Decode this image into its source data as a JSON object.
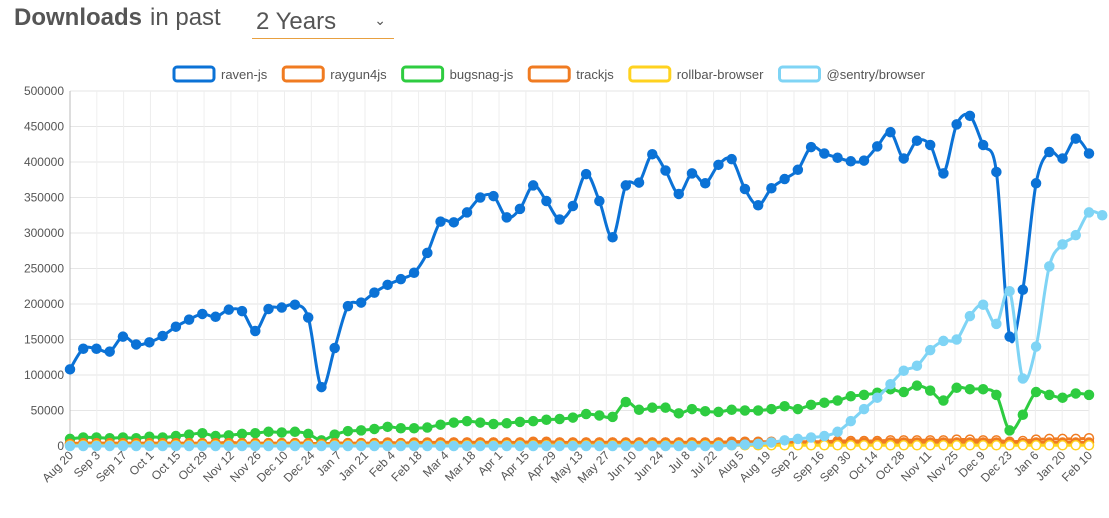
{
  "header": {
    "title": "Downloads",
    "subtitle": "in past"
  },
  "period": {
    "selected": "2 Years",
    "chevron_icon": "chevron-down-icon"
  },
  "chart_data": {
    "type": "line",
    "ylim": [
      0,
      500000
    ],
    "yticks": [
      0,
      50000,
      100000,
      150000,
      200000,
      250000,
      300000,
      350000,
      400000,
      450000,
      500000
    ],
    "xtick_labels": [
      "Aug 20",
      "Sep 3",
      "Sep 17",
      "Oct 1",
      "Oct 15",
      "Oct 29",
      "Nov 12",
      "Nov 26",
      "Dec 10",
      "Dec 24",
      "Jan 7",
      "Jan 21",
      "Feb 4",
      "Feb 18",
      "Mar 4",
      "Mar 18",
      "Apr 1",
      "Apr 15",
      "Apr 29",
      "May 13",
      "May 27",
      "Jun 10",
      "Jun 24",
      "Jul 8",
      "Jul 22",
      "Aug 5",
      "Aug 19",
      "Sep 2",
      "Sep 16",
      "Sep 30",
      "Oct 14",
      "Oct 28",
      "Nov 11",
      "Nov 25",
      "Dec 9",
      "Dec 23",
      "Jan 6",
      "Jan 20",
      "Feb 10"
    ],
    "grid": true,
    "legend_position": "top",
    "series": [
      {
        "name": "raven-js",
        "color": "#0b72d6",
        "fill": "#0b72d6",
        "values": [
          108000,
          137000,
          137000,
          133000,
          154000,
          143000,
          146000,
          155000,
          168000,
          178000,
          186000,
          182000,
          192000,
          190000,
          162000,
          193000,
          195000,
          199000,
          181000,
          83000,
          138000,
          197000,
          202000,
          216000,
          227000,
          235000,
          244000,
          272000,
          316000,
          315000,
          329000,
          350000,
          352000,
          322000,
          334000,
          367000,
          345000,
          319000,
          338000,
          383000,
          345000,
          294000,
          367000,
          371000,
          411000,
          388000,
          355000,
          384000,
          370000,
          396000,
          404000,
          362000,
          339000,
          363000,
          376000,
          389000,
          421000,
          412000,
          406000,
          401000,
          402000,
          422000,
          442000,
          405000,
          430000,
          424000,
          384000,
          453000,
          465000,
          424000,
          386000,
          154000,
          220000,
          370000,
          414000,
          405000,
          433000,
          412000
        ]
      },
      {
        "name": "raygun4js",
        "color": "#f07b21",
        "fill": "#ffffff",
        "values": [
          4000,
          4000,
          4000,
          4000,
          4000,
          4000,
          4000,
          4000,
          4000,
          4000,
          4000,
          4000,
          5000,
          4000,
          4000,
          4000,
          4000,
          4000,
          4000,
          3000,
          4000,
          4000,
          4000,
          4000,
          5000,
          4000,
          5000,
          5000,
          5000,
          5000,
          5000,
          5000,
          5000,
          5000,
          5000,
          6000,
          6000,
          5000,
          5000,
          5000,
          5000,
          5000,
          5000,
          5000,
          5000,
          5000,
          5000,
          5000,
          5000,
          5000,
          6000,
          6000,
          6000,
          6000,
          6000,
          6000,
          6000,
          6000,
          7000,
          7000,
          7000,
          7000,
          8000,
          8000,
          8000,
          8000,
          8000,
          9000,
          9000,
          8000,
          8000,
          6000,
          7000,
          9000,
          10000,
          10000,
          10000,
          11000
        ]
      },
      {
        "name": "bugsnag-js",
        "color": "#2ecc40",
        "fill": "#2ecc40",
        "values": [
          10000,
          12000,
          12000,
          11000,
          12000,
          11000,
          13000,
          12000,
          14000,
          16000,
          18000,
          14000,
          15000,
          17000,
          18000,
          20000,
          19000,
          20000,
          17000,
          8000,
          16000,
          21000,
          22000,
          24000,
          27000,
          25000,
          25000,
          26000,
          30000,
          33000,
          35000,
          33000,
          31000,
          32000,
          34000,
          35000,
          37000,
          38000,
          40000,
          45000,
          43000,
          41000,
          62000,
          51000,
          54000,
          54000,
          46000,
          52000,
          49000,
          48000,
          51000,
          50000,
          50000,
          52000,
          56000,
          52000,
          58000,
          61000,
          64000,
          70000,
          72000,
          75000,
          80000,
          76000,
          85000,
          78000,
          64000,
          82000,
          80000,
          80000,
          72000,
          22000,
          44000,
          76000,
          72000,
          68000,
          74000,
          72000
        ]
      },
      {
        "name": "trackjs",
        "color": "#f07b21",
        "fill": "#f07b21",
        "values": [
          3000,
          4000,
          4000,
          4000,
          4000,
          4000,
          4000,
          4000,
          4000,
          4000,
          4000,
          4000,
          4000,
          4000,
          4000,
          4000,
          4000,
          4000,
          4000,
          3000,
          4000,
          4000,
          4000,
          4000,
          4000,
          4000,
          4000,
          4000,
          5000,
          5000,
          5000,
          5000,
          5000,
          5000,
          5000,
          5000,
          5000,
          5000,
          5000,
          5000,
          5000,
          5000,
          5000,
          5000,
          5000,
          5000,
          5000,
          5000,
          5000,
          5000,
          5000,
          5000,
          5000,
          5000,
          5000,
          5000,
          5000,
          5000,
          5000,
          5000,
          5000,
          5000,
          5000,
          5000,
          5000,
          5000,
          5000,
          5000,
          5000,
          5000,
          5000,
          4000,
          4000,
          5000,
          5000,
          5000,
          5000,
          5000
        ]
      },
      {
        "name": "rollbar-browser",
        "color": "#ffd21f",
        "fill": "#ffffff",
        "values": [
          1000,
          1000,
          1000,
          1000,
          1000,
          1000,
          1000,
          1000,
          1000,
          1000,
          1000,
          1000,
          1000,
          1000,
          1000,
          1000,
          1000,
          1000,
          1000,
          1000,
          1000,
          1000,
          1000,
          1000,
          1000,
          1000,
          1000,
          1000,
          1000,
          1000,
          1000,
          1000,
          1000,
          1000,
          1000,
          1000,
          1000,
          1000,
          1000,
          1000,
          1000,
          1000,
          1000,
          1000,
          1000,
          1000,
          1000,
          1000,
          1000,
          1000,
          1000,
          1000,
          1000,
          1000,
          1000,
          1000,
          1000,
          1000,
          1000,
          1000,
          1000,
          1000,
          1000,
          1000,
          1000,
          1000,
          1000,
          1000,
          1000,
          1000,
          1000,
          1000,
          1000,
          1000,
          1000,
          1000,
          1000,
          1000
        ]
      },
      {
        "name": "@sentry/browser",
        "color": "#7fd4f5",
        "fill": "#7fd4f5",
        "values": [
          0,
          0,
          0,
          0,
          0,
          0,
          0,
          0,
          0,
          0,
          0,
          0,
          0,
          0,
          0,
          0,
          0,
          0,
          0,
          0,
          0,
          0,
          0,
          0,
          0,
          0,
          0,
          0,
          0,
          0,
          0,
          0,
          0,
          0,
          0,
          0,
          0,
          0,
          0,
          0,
          0,
          0,
          0,
          0,
          0,
          0,
          0,
          0,
          0,
          0,
          1000,
          2000,
          3000,
          5000,
          8000,
          10000,
          12000,
          14000,
          20000,
          35000,
          52000,
          68000,
          87000,
          106000,
          113000,
          135000,
          148000,
          150000,
          183000,
          199000,
          172000,
          218000,
          95000,
          140000,
          253000,
          284000,
          297000,
          329000,
          325000
        ]
      }
    ]
  }
}
